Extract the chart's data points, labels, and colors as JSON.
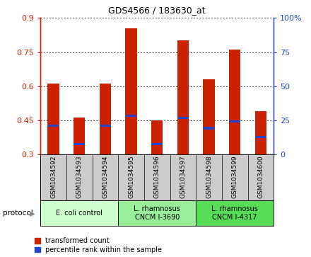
{
  "title": "GDS4566 / 183630_at",
  "samples": [
    "GSM1034592",
    "GSM1034593",
    "GSM1034594",
    "GSM1034595",
    "GSM1034596",
    "GSM1034597",
    "GSM1034598",
    "GSM1034599",
    "GSM1034600"
  ],
  "red_tops": [
    0.61,
    0.46,
    0.61,
    0.855,
    0.45,
    0.8,
    0.63,
    0.76,
    0.49
  ],
  "red_bottoms": [
    0.3,
    0.3,
    0.3,
    0.3,
    0.3,
    0.3,
    0.3,
    0.3,
    0.3
  ],
  "blue_values": [
    0.425,
    0.345,
    0.425,
    0.47,
    0.345,
    0.46,
    0.415,
    0.445,
    0.375
  ],
  "ylim": [
    0.3,
    0.9
  ],
  "yticks_left": [
    0.3,
    0.45,
    0.6,
    0.75,
    0.9
  ],
  "yticks_right": [
    0,
    25,
    50,
    75,
    100
  ],
  "groups": [
    {
      "label": "E. coli control",
      "start": 0,
      "end": 3,
      "color": "#ccffcc"
    },
    {
      "label": "L. rhamnosus\nCNCM I-3690",
      "start": 3,
      "end": 6,
      "color": "#99ee99"
    },
    {
      "label": "L. rhamnosus\nCNCM I-4317",
      "start": 6,
      "end": 9,
      "color": "#55dd55"
    }
  ],
  "bar_width": 0.45,
  "red_color": "#cc2200",
  "blue_color": "#2244cc",
  "bg_color": "#cccccc",
  "legend_red": "transformed count",
  "legend_blue": "percentile rank within the sample",
  "protocol_label": "protocol"
}
